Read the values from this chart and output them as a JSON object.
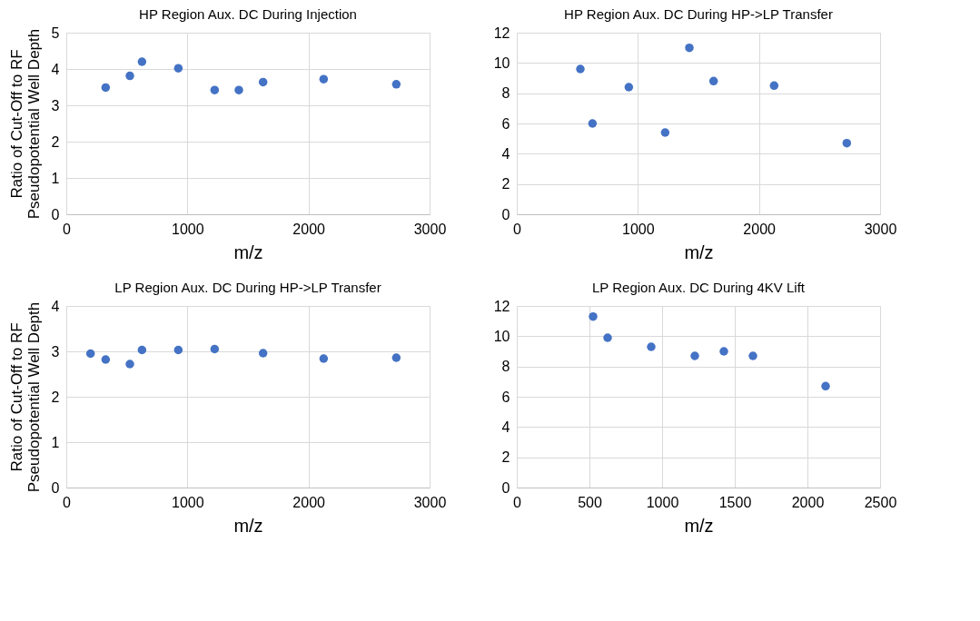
{
  "chart_data": [
    {
      "type": "scatter",
      "title": "HP Region Aux. DC During Injection",
      "xlabel": "m/z",
      "ylabel": "Ratio of Cut-Off to RF\nPseudopotential Well Depth",
      "x": [
        325,
        525,
        625,
        925,
        1225,
        1425,
        1625,
        2125,
        2725
      ],
      "series": [
        {
          "color": "#4472c4",
          "values": [
            3.49,
            3.81,
            4.2,
            4.02,
            3.42,
            3.42,
            3.64,
            3.72,
            3.58
          ]
        }
      ],
      "xlim": [
        0,
        3000
      ],
      "xticks": [
        0,
        1000,
        2000,
        3000
      ],
      "ylim": [
        0,
        5
      ],
      "yticks": [
        0,
        1,
        2,
        3,
        4,
        5
      ],
      "grid": true,
      "marker": "circle"
    },
    {
      "type": "scatter",
      "title": "HP Region Aux. DC During HP->LP Transfer",
      "xlabel": "m/z",
      "x": [
        525,
        625,
        925,
        1225,
        1425,
        1625,
        2125,
        2725
      ],
      "series": [
        {
          "color": "#4472c4",
          "values": [
            9.6,
            6.0,
            8.4,
            5.4,
            11.0,
            8.8,
            8.5,
            4.7
          ]
        }
      ],
      "xlim": [
        0,
        3000
      ],
      "xticks": [
        0,
        1000,
        2000,
        3000
      ],
      "ylim": [
        0,
        12
      ],
      "yticks": [
        0,
        2,
        4,
        6,
        8,
        10,
        12
      ],
      "grid": true,
      "marker": "circle"
    },
    {
      "type": "scatter",
      "title": "LP Region Aux. DC During HP->LP Transfer",
      "xlabel": "m/z",
      "ylabel": "Ratio of Cut-Off to RF\nPseudopotential  Well Depth",
      "x": [
        200,
        325,
        525,
        625,
        925,
        1225,
        1625,
        2125,
        2725
      ],
      "series": [
        {
          "color": "#4472c4",
          "values": [
            2.95,
            2.82,
            2.72,
            3.03,
            3.03,
            3.05,
            2.96,
            2.84,
            2.86
          ]
        }
      ],
      "xlim": [
        0,
        3000
      ],
      "xticks": [
        0,
        1000,
        2000,
        3000
      ],
      "ylim": [
        0,
        4
      ],
      "yticks": [
        0,
        1,
        2,
        3,
        4
      ],
      "grid": true,
      "marker": "circle"
    },
    {
      "type": "scatter",
      "title": "LP Region Aux. DC During 4KV Lift",
      "xlabel": "m/z",
      "x": [
        525,
        625,
        925,
        1225,
        1425,
        1625,
        2125
      ],
      "series": [
        {
          "color": "#4472c4",
          "values": [
            11.3,
            9.9,
            9.3,
            8.7,
            9.0,
            8.7,
            6.7
          ]
        }
      ],
      "xlim": [
        0,
        2500
      ],
      "xticks": [
        0,
        500,
        1000,
        1500,
        2000,
        2500
      ],
      "ylim": [
        0,
        12
      ],
      "yticks": [
        0,
        2,
        4,
        6,
        8,
        10,
        12
      ],
      "grid": true,
      "marker": "circle"
    }
  ]
}
